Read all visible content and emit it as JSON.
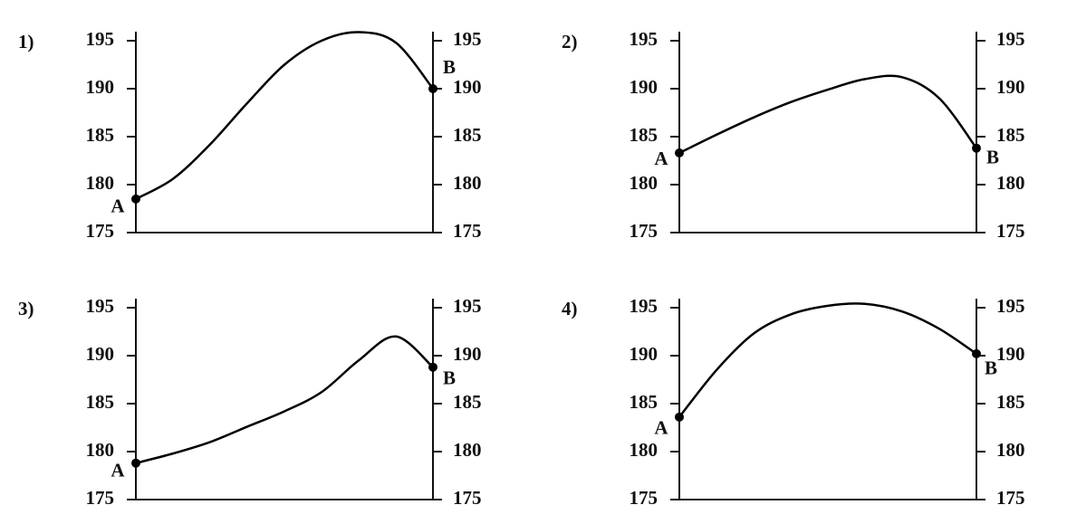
{
  "chart_data": [
    {
      "type": "line",
      "title": "1)",
      "categories": [
        null,
        null,
        null,
        null,
        null,
        null,
        null,
        null,
        null
      ],
      "values": [
        178.5,
        180.6,
        184.2,
        188.5,
        192.5,
        195.0,
        195.9,
        194.8,
        190.0
      ],
      "annotations": [
        "A",
        "B"
      ],
      "color": "#000000",
      "ylim": [
        175,
        195
      ],
      "yticks": [
        175,
        180,
        185,
        190,
        195
      ],
      "y2lim": [
        175,
        195
      ],
      "y2ticks": [
        175,
        180,
        185,
        190,
        195
      ]
    },
    {
      "type": "line",
      "title": "2)",
      "categories": [
        null,
        null,
        null,
        null,
        null,
        null,
        null,
        null,
        null
      ],
      "values": [
        183.3,
        185.2,
        187.0,
        188.6,
        189.9,
        191.0,
        191.2,
        189.0,
        183.8
      ],
      "annotations": [
        "A",
        "B"
      ],
      "color": "#000000",
      "ylim": [
        175,
        195
      ],
      "yticks": [
        175,
        180,
        185,
        190,
        195
      ],
      "y2lim": [
        175,
        195
      ],
      "y2ticks": [
        175,
        180,
        185,
        190,
        195
      ]
    },
    {
      "type": "line",
      "title": "3)",
      "categories": [
        null,
        null,
        null,
        null,
        null,
        null,
        null,
        null,
        null
      ],
      "values": [
        178.8,
        179.8,
        181.0,
        182.6,
        184.2,
        186.2,
        189.5,
        192.0,
        188.8
      ],
      "annotations": [
        "A",
        "B"
      ],
      "color": "#000000",
      "ylim": [
        175,
        195
      ],
      "yticks": [
        175,
        180,
        185,
        190,
        195
      ],
      "y2lim": [
        175,
        195
      ],
      "y2ticks": [
        175,
        180,
        185,
        190,
        195
      ]
    },
    {
      "type": "line",
      "title": "4)",
      "categories": [
        null,
        null,
        null,
        null,
        null,
        null,
        null,
        null,
        null
      ],
      "values": [
        183.6,
        188.5,
        192.3,
        194.3,
        195.2,
        195.4,
        194.6,
        192.8,
        190.2
      ],
      "annotations": [
        "A",
        "B"
      ],
      "color": "#000000",
      "ylim": [
        175,
        195
      ],
      "yticks": [
        175,
        180,
        185,
        190,
        195
      ],
      "y2lim": [
        175,
        195
      ],
      "y2ticks": [
        175,
        180,
        185,
        190,
        195
      ]
    }
  ]
}
